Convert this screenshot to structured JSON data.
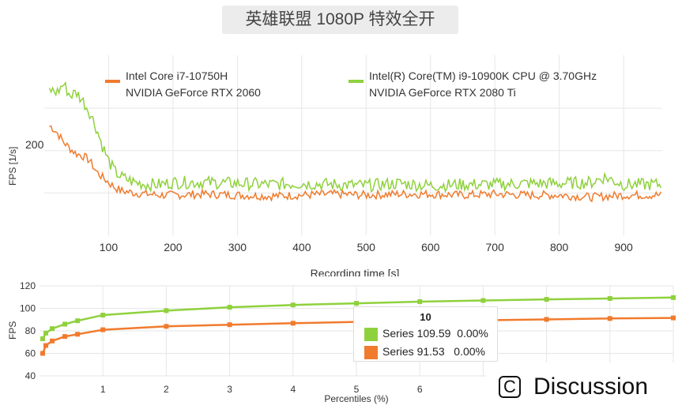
{
  "title": "英雄联盟 1080P 特效全开",
  "colors": {
    "orange": "#f07b2d",
    "green": "#8fd13d",
    "grid": "#e6e6e6"
  },
  "chart_data": [
    {
      "type": "line",
      "title": "英雄联盟 1080P 特效全开",
      "xlabel": "Recording time [s]",
      "ylabel": "FPS [1/s]",
      "xlim": [
        0,
        960
      ],
      "ylim": [
        95,
        265
      ],
      "x_ticks": [
        "100",
        "200",
        "300",
        "400",
        "500",
        "600",
        "700",
        "800",
        "900"
      ],
      "y_ticks": [
        "200"
      ],
      "legend": [
        {
          "line1": "Intel Core i7-10750H",
          "line2": "NVIDIA GeForce RTX 2060",
          "color": "#f07b2d"
        },
        {
          "line1": "Intel(R) Core(TM) i9-10900K CPU @ 3.70GHz",
          "line2": "NVIDIA GeForce RTX 2080 Ti",
          "color": "#8fd13d"
        }
      ],
      "series": [
        {
          "name": "Intel Core i7-10750H / NVIDIA GeForce RTX 2060",
          "x": [
            10,
            20,
            30,
            40,
            50,
            60,
            70,
            80,
            90,
            100,
            110,
            120,
            140,
            160,
            180,
            200,
            250,
            300,
            350,
            400,
            450,
            500,
            550,
            600,
            650,
            700,
            750,
            800,
            850,
            900,
            960
          ],
          "values": [
            198,
            192,
            183,
            177,
            172,
            170,
            166,
            156,
            150,
            145,
            140,
            137,
            135,
            134,
            133,
            133,
            134,
            133,
            132,
            133,
            134,
            133,
            134,
            134,
            133,
            134,
            133,
            133,
            131,
            133,
            133
          ]
        },
        {
          "name": "Intel(R) Core(TM) i9-10900K CPU @ 3.70GHz / NVIDIA GeForce RTX 2080 Ti",
          "x": [
            10,
            20,
            30,
            40,
            50,
            60,
            70,
            80,
            90,
            100,
            110,
            120,
            140,
            160,
            180,
            200,
            250,
            300,
            350,
            400,
            450,
            500,
            550,
            600,
            650,
            700,
            750,
            800,
            850,
            870,
            900,
            960
          ],
          "values": [
            232,
            230,
            238,
            227,
            230,
            222,
            212,
            198,
            180,
            165,
            155,
            150,
            145,
            143,
            143,
            145,
            145,
            144,
            143,
            144,
            143,
            142,
            144,
            142,
            143,
            143,
            144,
            144,
            145,
            150,
            143,
            143
          ]
        }
      ]
    },
    {
      "type": "line",
      "xlabel": "Percentiles (%)",
      "ylabel": "FPS",
      "xlim": [
        0,
        10
      ],
      "ylim": [
        40,
        120
      ],
      "x_ticks": [
        "1",
        "2",
        "3",
        "4",
        "5",
        "6"
      ],
      "y_ticks": [
        "40",
        "60",
        "80",
        "100",
        "120"
      ],
      "series": [
        {
          "name": "Series",
          "color": "#8fd13d",
          "x": [
            0.05,
            0.1,
            0.2,
            0.4,
            0.6,
            1,
            2,
            3,
            4,
            5,
            6,
            7,
            8,
            9,
            10
          ],
          "values": [
            73,
            78,
            82,
            86,
            89,
            94,
            98,
            101,
            103,
            104.5,
            106,
            107,
            108,
            108.8,
            109.59
          ]
        },
        {
          "name": "Series",
          "color": "#f07b2d",
          "x": [
            0.05,
            0.1,
            0.2,
            0.4,
            0.6,
            1,
            2,
            3,
            4,
            5,
            6,
            7,
            8,
            9,
            10
          ],
          "values": [
            60,
            67,
            71,
            75,
            77,
            81,
            84,
            85.5,
            86.8,
            88,
            88.8,
            89.5,
            90.2,
            91,
            91.53
          ]
        }
      ],
      "tooltip": {
        "title": "10",
        "rows": [
          {
            "label": "Series",
            "value": "109.59",
            "pct": "0.00%",
            "color": "#8fd13d"
          },
          {
            "label": "Series",
            "value": "91.53",
            "pct": "0.00%",
            "color": "#f07b2d"
          }
        ]
      }
    }
  ],
  "overlay": {
    "discussion_label": "Discussion",
    "discussion_icon": "c-icon"
  }
}
